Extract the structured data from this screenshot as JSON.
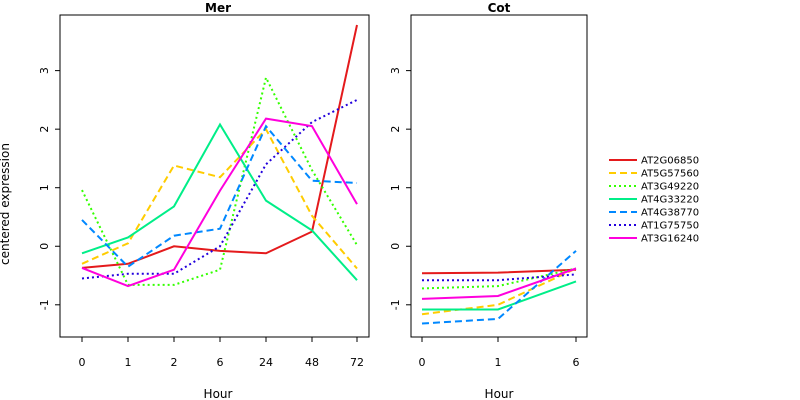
{
  "chart_data": {
    "type": "line",
    "ylabel": "centered expression",
    "ylim": [
      -1.55,
      3.95
    ],
    "yticks": [
      -1,
      0,
      1,
      2,
      3
    ],
    "grid": false,
    "legend_position": "right",
    "panels": [
      {
        "title": "Mer",
        "xlabel": "Hour",
        "categories": [
          "0",
          "1",
          "2",
          "6",
          "24",
          "48",
          "72"
        ],
        "series": [
          {
            "name": "AT2G06850",
            "values": [
              -0.37,
              -0.3,
              0.0,
              -0.08,
              -0.12,
              0.25,
              3.78
            ]
          },
          {
            "name": "AT5G57560",
            "values": [
              -0.3,
              0.05,
              1.38,
              1.18,
              2.0,
              0.52,
              -0.38
            ]
          },
          {
            "name": "AT3G49220",
            "values": [
              0.96,
              -0.66,
              -0.66,
              -0.4,
              2.88,
              1.3,
              0.02
            ]
          },
          {
            "name": "AT4G33220",
            "values": [
              -0.12,
              0.15,
              0.68,
              2.08,
              0.78,
              0.27,
              -0.58
            ]
          },
          {
            "name": "AT4G38770",
            "values": [
              0.45,
              -0.35,
              0.18,
              0.3,
              2.05,
              1.12,
              1.08
            ]
          },
          {
            "name": "AT1G75750",
            "values": [
              -0.55,
              -0.47,
              -0.47,
              0.0,
              1.4,
              2.12,
              2.5
            ]
          },
          {
            "name": "AT3G16240",
            "values": [
              -0.37,
              -0.68,
              -0.4,
              0.95,
              2.18,
              2.05,
              0.72
            ]
          }
        ]
      },
      {
        "title": "Cot",
        "xlabel": "Hour",
        "categories": [
          "0",
          "1",
          "6"
        ],
        "series": [
          {
            "name": "AT2G06850",
            "values": [
              -0.46,
              -0.45,
              -0.4
            ]
          },
          {
            "name": "AT5G57560",
            "values": [
              -1.16,
              -1.0,
              -0.38
            ]
          },
          {
            "name": "AT3G49220",
            "values": [
              -0.72,
              -0.68,
              -0.38
            ]
          },
          {
            "name": "AT4G33220",
            "values": [
              -1.08,
              -1.08,
              -0.6
            ]
          },
          {
            "name": "AT4G38770",
            "values": [
              -1.32,
              -1.24,
              -0.08
            ]
          },
          {
            "name": "AT1G75750",
            "values": [
              -0.58,
              -0.58,
              -0.48
            ]
          },
          {
            "name": "AT3G16240",
            "values": [
              -0.9,
              -0.85,
              -0.38
            ]
          }
        ]
      }
    ],
    "styles": [
      {
        "name": "AT2G06850",
        "color": "#e41a1c",
        "dash": "solid"
      },
      {
        "name": "AT5G57560",
        "color": "#ffcc00",
        "dash": "long-dash"
      },
      {
        "name": "AT3G49220",
        "color": "#33ff00",
        "dash": "dot"
      },
      {
        "name": "AT4G33220",
        "color": "#00ee88",
        "dash": "solid"
      },
      {
        "name": "AT4G38770",
        "color": "#0088ff",
        "dash": "long-dash"
      },
      {
        "name": "AT1G75750",
        "color": "#2200dd",
        "dash": "dot"
      },
      {
        "name": "AT3G16240",
        "color": "#ff00dd",
        "dash": "solid"
      }
    ]
  }
}
